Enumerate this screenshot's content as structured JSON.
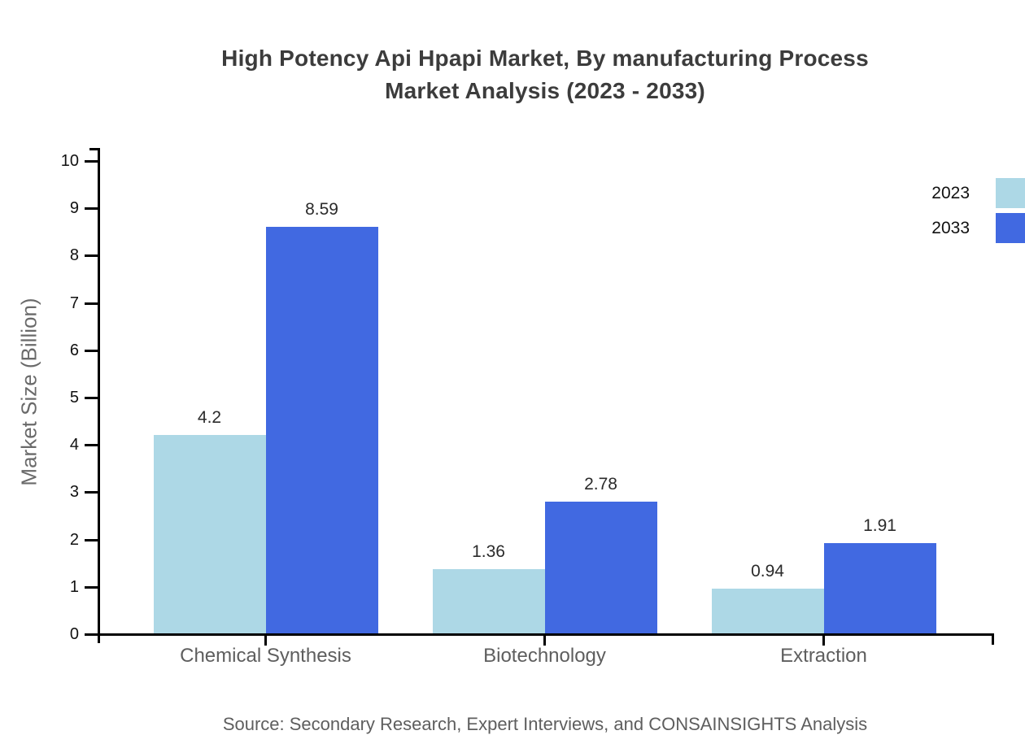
{
  "header": {
    "title_line1": "High Potency Api Hpapi Market, By manufacturing Process",
    "title_line2": "Market Analysis (2023 - 2033)"
  },
  "source": {
    "text": "Source: Secondary Research, Expert Interviews, and CONSAINSIGHTS Analysis"
  },
  "colors": {
    "series_2023": "#ADD8E6",
    "series_2033": "#4169E1",
    "axis": "#000000",
    "title_text": "#3c3c3c",
    "muted_text": "#5e5e5e"
  },
  "chart_data": {
    "type": "bar",
    "title": "High Potency Api Hpapi Market, By manufacturing Process Market Analysis (2023 - 2033)",
    "categories": [
      "Chemical Synthesis",
      "Biotechnology",
      "Extraction"
    ],
    "series": [
      {
        "name": "2023",
        "color": "#ADD8E6",
        "values": [
          4.2,
          1.36,
          0.94
        ]
      },
      {
        "name": "2033",
        "color": "#4169E1",
        "values": [
          8.59,
          2.78,
          1.91
        ]
      }
    ],
    "value_labels": {
      "2023": [
        "4.2",
        "1.36",
        "0.94"
      ],
      "2033": [
        "8.59",
        "2.78",
        "1.91"
      ]
    },
    "xlabel": "",
    "ylabel": "Market Size (Billion)",
    "ylim": [
      0,
      10
    ],
    "ytick_step": 1,
    "yticks": [
      0,
      1,
      2,
      3,
      4,
      5,
      6,
      7,
      8,
      9,
      10
    ],
    "grid": false,
    "legend_position": "top-right"
  }
}
